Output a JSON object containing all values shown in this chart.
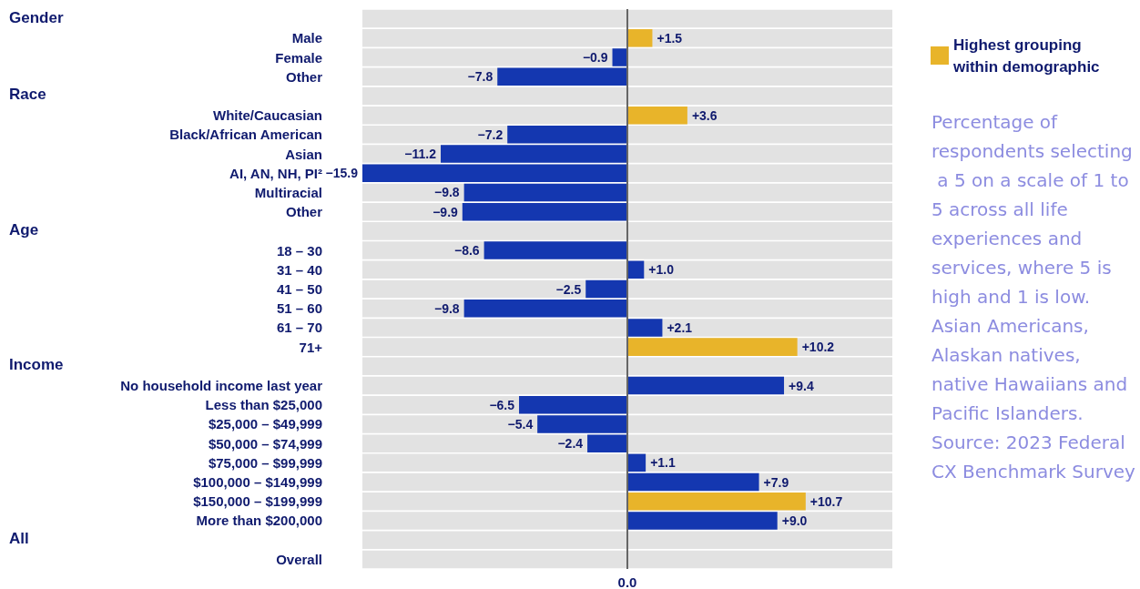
{
  "chart_data": {
    "type": "bar",
    "orientation": "horizontal",
    "stacked": true,
    "categories": [
      null,
      "Male",
      "Female",
      "Other",
      null,
      "White/Caucasian",
      "Black/African American",
      "Asian",
      "AI, AN, NH, PI²",
      "Multiracial",
      "Other",
      null,
      "18 – 30",
      "31 – 40",
      "41 – 50",
      "51 – 60",
      "61 – 70",
      "71+",
      null,
      "No household income last year",
      "Less than $25,000",
      "$25,000 – $49,999",
      "$50,000 – $74,999",
      "$75,000 – $99,999",
      "$100,000 – $149,999",
      "$150,000 – $199,999",
      "More than $200,000",
      null,
      "Overall"
    ],
    "series": [
      {
        "color": "#1437b0",
        "values": [
          null,
          null,
          -0.9,
          -7.8,
          null,
          null,
          -7.2,
          -11.2,
          -15.9,
          -9.8,
          -9.9,
          null,
          -8.6,
          1.0,
          -2.5,
          -9.8,
          2.1,
          null,
          null,
          9.4,
          -6.5,
          -5.4,
          -2.4,
          1.1,
          7.9,
          null,
          9.0,
          null,
          0
        ],
        "value_labels": [
          null,
          null,
          "−0.9",
          "−7.8",
          null,
          null,
          "−7.2",
          "−11.2",
          "−15.9",
          "−9.8",
          "−9.9",
          null,
          "−8.6",
          "+1.0",
          "−2.5",
          "−9.8",
          "+2.1",
          null,
          null,
          "+9.4",
          "−6.5",
          "−5.4",
          "−2.4",
          "+1.1",
          "+7.9",
          null,
          "+9.0",
          null,
          null
        ]
      },
      {
        "name": "Highest grouping within demographic",
        "color": "#e8b42a",
        "values": [
          null,
          1.5,
          null,
          null,
          null,
          3.6,
          null,
          null,
          null,
          null,
          null,
          null,
          null,
          null,
          null,
          null,
          null,
          10.2,
          null,
          null,
          null,
          null,
          null,
          null,
          null,
          10.7,
          null,
          null,
          null
        ],
        "value_labels": [
          null,
          "+1.5",
          null,
          null,
          null,
          "+3.6",
          null,
          null,
          null,
          null,
          null,
          null,
          null,
          null,
          null,
          null,
          null,
          "+10.2",
          null,
          null,
          null,
          null,
          null,
          null,
          null,
          "+10.7",
          null,
          null,
          null
        ]
      }
    ],
    "legend": "top right",
    "annotations": [
      "Gender",
      "Race",
      "Age",
      "Income",
      "All",
      {
        "text": "0.0",
        "x": 0
      },
      "Percentage of respondents selecting a 5 on a scale of 1 to 5 across all life experiences and services, where 5 is high and 1 is low.",
      "Asian Americans, Alaskan natives, native Hawaiians and Pacific Islanders.",
      "Source: 2023 Federal CX Benchmark Survey"
    ]
  }
}
